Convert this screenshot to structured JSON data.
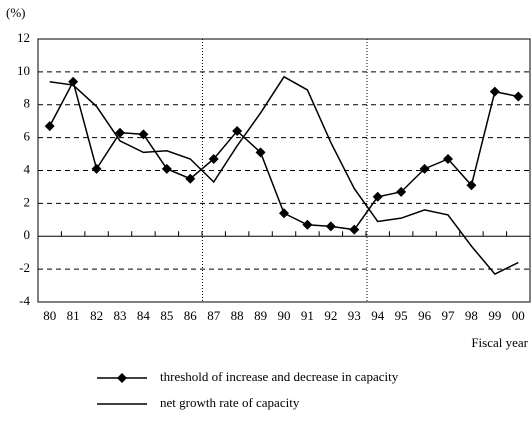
{
  "chart_data": {
    "type": "line",
    "y_label": "(%)",
    "x_label": "Fiscal year",
    "categories": [
      "80",
      "81",
      "82",
      "83",
      "84",
      "85",
      "86",
      "87",
      "88",
      "89",
      "90",
      "91",
      "92",
      "93",
      "94",
      "95",
      "96",
      "97",
      "98",
      "99",
      "00"
    ],
    "series": [
      {
        "name": "threshold of increase and decrease in capacity",
        "color": "#000000",
        "marker": "diamond",
        "values": [
          6.7,
          9.4,
          4.1,
          6.3,
          6.2,
          4.1,
          3.5,
          4.7,
          6.4,
          5.1,
          1.4,
          0.7,
          0.6,
          0.4,
          2.4,
          2.7,
          4.1,
          4.7,
          3.1,
          8.8,
          8.5
        ]
      },
      {
        "name": "net growth rate of capacity",
        "color": "#000000",
        "values": [
          9.4,
          9.2,
          7.9,
          5.8,
          5.1,
          5.2,
          4.7,
          3.3,
          5.5,
          7.5,
          9.7,
          8.9,
          5.7,
          2.9,
          0.9,
          1.1,
          1.6,
          1.3,
          -0.6,
          -2.3,
          -1.6
        ]
      }
    ],
    "ylim": [
      -4,
      12
    ],
    "yticks": [
      -4,
      -2,
      0,
      2,
      4,
      6,
      8,
      10,
      12
    ],
    "grid": true
  }
}
